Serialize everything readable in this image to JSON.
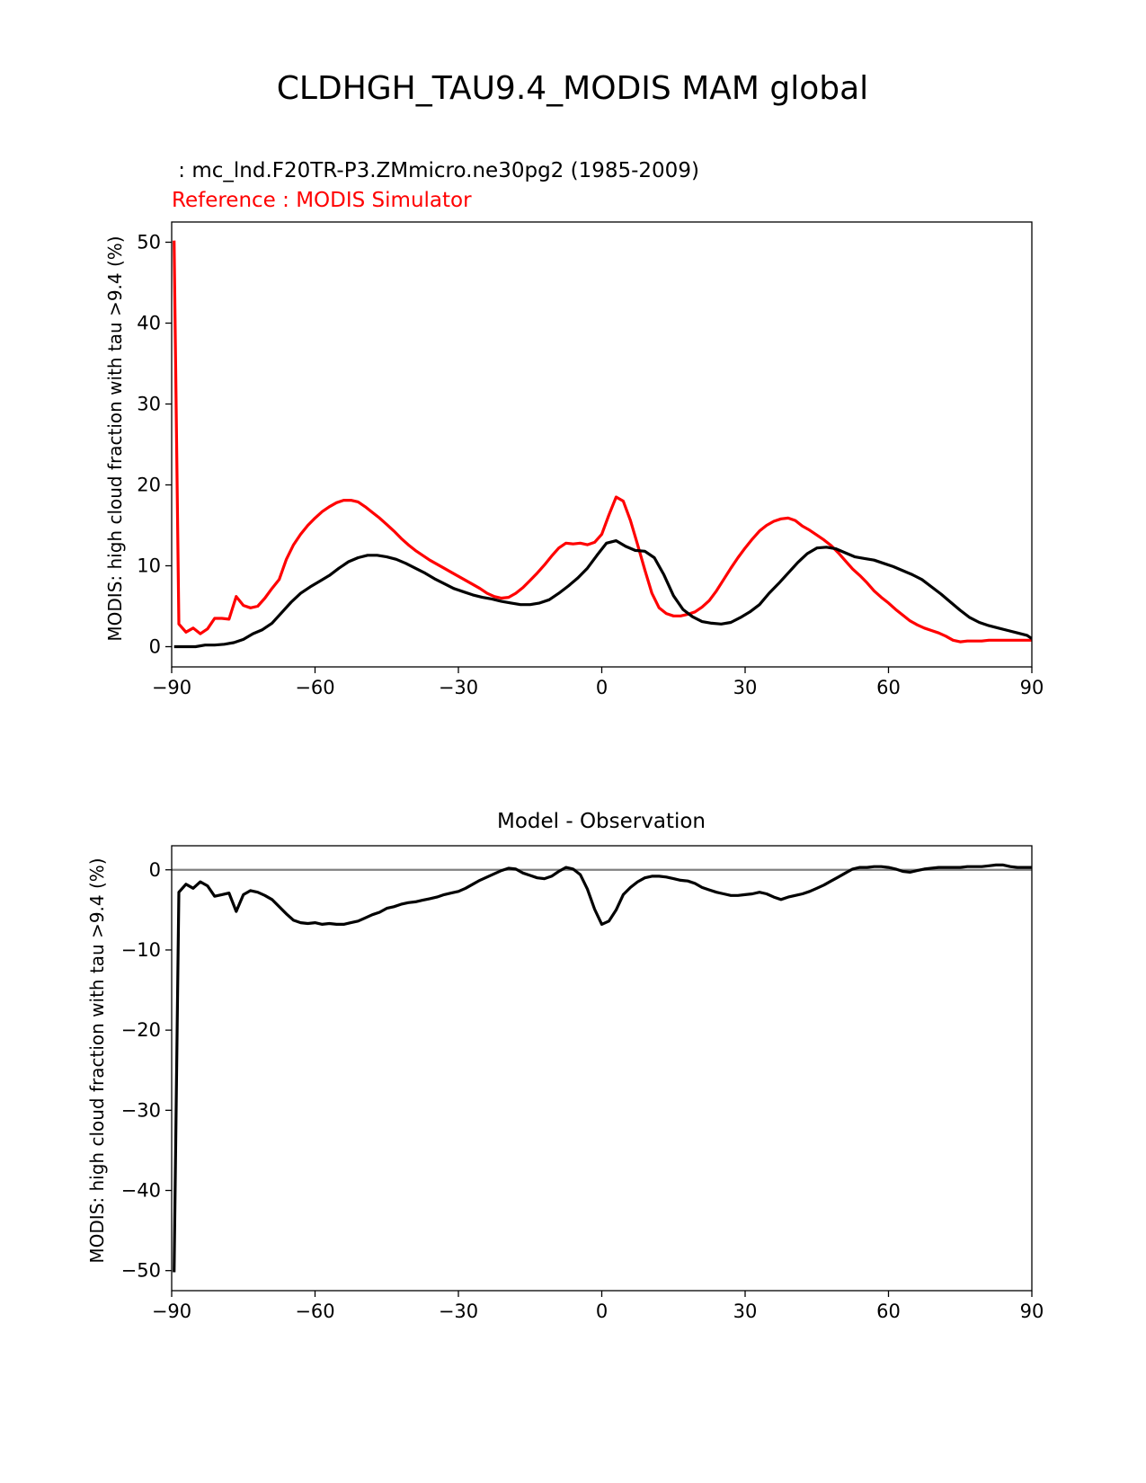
{
  "figure_title": "CLDHGH_TAU9.4_MODIS MAM global",
  "colors": {
    "test": "#000000",
    "reference": "#ff0000",
    "zero_line": "#808080",
    "axes": "#000000"
  },
  "chart_data": [
    {
      "type": "line",
      "panel": "top",
      "title": "",
      "test_label": " : mc_lnd.F20TR-P3.ZMmicro.ne30pg2 (1985-2009)",
      "ref_label": "Reference : MODIS Simulator",
      "xlabel": "",
      "ylabel": "MODIS: high cloud fraction with tau >9.4 (%)",
      "xlim": [
        -90,
        90
      ],
      "ylim": [
        -2.5,
        52.5
      ],
      "xticks": [
        -90,
        -60,
        -30,
        0,
        30,
        60,
        90
      ],
      "xtick_labels": [
        "−90",
        "−60",
        "−30",
        "0",
        "30",
        "60",
        "90"
      ],
      "yticks": [
        0,
        10,
        20,
        30,
        40,
        50
      ],
      "ytick_labels": [
        "0",
        "10",
        "20",
        "30",
        "40",
        "50"
      ],
      "series": [
        {
          "name": "test",
          "color": "#000000",
          "x": [
            -89.5,
            -87,
            -85,
            -83,
            -81,
            -79,
            -77,
            -75,
            -73,
            -71,
            -69,
            -67,
            -65,
            -63,
            -61,
            -59,
            -57,
            -55,
            -53,
            -51,
            -49,
            -47,
            -45,
            -43,
            -41,
            -39,
            -37,
            -35,
            -33,
            -31,
            -29,
            -27,
            -25,
            -23,
            -21,
            -19,
            -17,
            -15,
            -13,
            -11,
            -9,
            -7,
            -5,
            -3,
            -1,
            1,
            3,
            5,
            7,
            9,
            11,
            13,
            15,
            17,
            19,
            21,
            23,
            25,
            27,
            29,
            31,
            33,
            35,
            37,
            39,
            41,
            43,
            45,
            47,
            49,
            51,
            53,
            55,
            57,
            59,
            61,
            63,
            65,
            67,
            69,
            71,
            73,
            75,
            77,
            79,
            81,
            83,
            85,
            87,
            89
          ],
          "values": [
            0,
            0,
            0,
            0.2,
            0.2,
            0.3,
            0.5,
            0.9,
            1.6,
            2.1,
            2.9,
            4.2,
            5.5,
            6.6,
            7.4,
            8.1,
            8.8,
            9.7,
            10.5,
            11.0,
            11.3,
            11.3,
            11.1,
            10.8,
            10.3,
            9.7,
            9.1,
            8.4,
            7.8,
            7.2,
            6.8,
            6.4,
            6.1,
            5.9,
            5.6,
            5.4,
            5.2,
            5.2,
            5.4,
            5.8,
            6.6,
            7.5,
            8.5,
            9.7,
            11.3,
            12.8,
            13.1,
            12.4,
            11.9,
            11.8,
            11.0,
            8.9,
            6.3,
            4.6,
            3.7,
            3.1,
            2.9,
            2.8,
            3.0,
            3.6,
            4.3,
            5.2,
            6.6,
            7.8,
            9.1,
            10.4,
            11.5,
            12.2,
            12.3,
            12.1,
            11.6,
            11.1,
            10.9,
            10.7,
            10.3,
            9.9,
            9.4,
            8.9,
            8.3,
            7.4,
            6.5,
            5.5,
            4.5,
            3.6,
            3.0,
            2.6,
            2.3,
            2.0,
            1.7,
            1.4
          ],
          "values_tail_note": "continues to 90 at ~1.0"
        },
        {
          "name": "reference",
          "color": "#ff0000",
          "x": [
            -89.5,
            -88.5,
            -87,
            -85.5,
            -84,
            -82.5,
            -81,
            -79.5,
            -78,
            -76.5,
            -75,
            -73.5,
            -72,
            -70.5,
            -69,
            -67.5,
            -66,
            -64.5,
            -63,
            -61.5,
            -60,
            -58.5,
            -57,
            -55.5,
            -54,
            -52.5,
            -51,
            -49.5,
            -48,
            -46.5,
            -45,
            -43.5,
            -42,
            -40.5,
            -39,
            -37.5,
            -36,
            -34.5,
            -33,
            -31.5,
            -30,
            -28.5,
            -27,
            -25.5,
            -24,
            -22.5,
            -21,
            -19.5,
            -18,
            -16.5,
            -15,
            -13.5,
            -12,
            -10.5,
            -9,
            -7.5,
            -6,
            -4.5,
            -3,
            -1.5,
            0,
            1.5,
            3,
            4.5,
            6,
            7.5,
            9,
            10.5,
            12,
            13.5,
            15,
            16.5,
            18,
            19.5,
            21,
            22.5,
            24,
            25.5,
            27,
            28.5,
            30,
            31.5,
            33,
            34.5,
            36,
            37.5,
            39,
            40.5,
            42,
            43.5,
            45,
            46.5,
            48,
            49.5,
            51,
            52.5,
            54,
            55.5,
            57,
            58.5,
            60,
            61.5,
            63,
            64.5,
            66,
            67.5,
            69,
            70.5,
            72,
            73.5,
            75,
            76.5,
            78,
            79.5,
            81,
            82.5,
            84,
            85.5,
            87,
            88.5,
            90
          ],
          "values": [
            50.2,
            2.8,
            1.8,
            2.3,
            1.6,
            2.2,
            3.5,
            3.5,
            3.4,
            6.2,
            5.1,
            4.8,
            5.0,
            6.0,
            7.2,
            8.3,
            10.8,
            12.6,
            13.9,
            15.0,
            15.9,
            16.7,
            17.3,
            17.8,
            18.1,
            18.1,
            17.9,
            17.3,
            16.6,
            15.9,
            15.1,
            14.3,
            13.4,
            12.6,
            11.9,
            11.3,
            10.7,
            10.2,
            9.7,
            9.2,
            8.7,
            8.2,
            7.7,
            7.2,
            6.6,
            6.2,
            6.0,
            6.1,
            6.6,
            7.3,
            8.2,
            9.1,
            10.1,
            11.2,
            12.2,
            12.8,
            12.7,
            12.8,
            12.6,
            12.9,
            13.9,
            16.3,
            18.5,
            18.0,
            15.6,
            12.6,
            9.5,
            6.6,
            4.8,
            4.1,
            3.8,
            3.8,
            4.0,
            4.3,
            4.9,
            5.7,
            6.9,
            8.3,
            9.7,
            11.0,
            12.2,
            13.3,
            14.3,
            15.0,
            15.5,
            15.8,
            15.9,
            15.6,
            14.9,
            14.4,
            13.8,
            13.2,
            12.5,
            11.6,
            10.6,
            9.6,
            8.8,
            7.9,
            6.9,
            6.1,
            5.4,
            4.6,
            3.9,
            3.2,
            2.7,
            2.3,
            2.0,
            1.7,
            1.3,
            0.8,
            0.6,
            0.7,
            0.7,
            0.7,
            0.8,
            0.8,
            0.8,
            0.8,
            0.8,
            0.8,
            0.8
          ]
        }
      ]
    },
    {
      "type": "line",
      "panel": "bottom",
      "title": "Model - Observation",
      "xlabel": "",
      "ylabel": "MODIS: high cloud fraction with tau >9.4 (%)",
      "xlim": [
        -90,
        90
      ],
      "ylim": [
        -52.5,
        3
      ],
      "xticks": [
        -90,
        -60,
        -30,
        0,
        30,
        60,
        90
      ],
      "xtick_labels": [
        "−90",
        "−60",
        "−30",
        "0",
        "30",
        "60",
        "90"
      ],
      "yticks": [
        0,
        -10,
        -20,
        -30,
        -40,
        -50
      ],
      "ytick_labels": [
        "0",
        "−10",
        "−20",
        "−30",
        "−40",
        "−50"
      ],
      "zero_line": 0,
      "series": [
        {
          "name": "difference",
          "color": "#000000",
          "x": [
            -89.5,
            -88.5,
            -87,
            -85.5,
            -84,
            -82.5,
            -81,
            -79.5,
            -78,
            -76.5,
            -75,
            -73.5,
            -72,
            -70.5,
            -69,
            -67.5,
            -66,
            -64.5,
            -63,
            -61.5,
            -60,
            -58.5,
            -57,
            -55.5,
            -54,
            -52.5,
            -51,
            -49.5,
            -48,
            -46.5,
            -45,
            -43.5,
            -42,
            -40.5,
            -39,
            -37.5,
            -36,
            -34.5,
            -33,
            -31.5,
            -30,
            -28.5,
            -27,
            -25.5,
            -24,
            -22.5,
            -21,
            -19.5,
            -18,
            -16.5,
            -15,
            -13.5,
            -12,
            -10.5,
            -9,
            -7.5,
            -6,
            -4.5,
            -3,
            -1.5,
            0,
            1.5,
            3,
            4.5,
            6,
            7.5,
            9,
            10.5,
            12,
            13.5,
            15,
            16.5,
            18,
            19.5,
            21,
            22.5,
            24,
            25.5,
            27,
            28.5,
            30,
            31.5,
            33,
            34.5,
            36,
            37.5,
            39,
            40.5,
            42,
            43.5,
            45,
            46.5,
            48,
            49.5,
            51,
            52.5,
            54,
            55.5,
            57,
            58.5,
            60,
            61.5,
            63,
            64.5,
            66,
            67.5,
            69,
            70.5,
            72,
            73.5,
            75,
            76.5,
            78,
            79.5,
            81,
            82.5,
            84,
            85.5,
            87,
            88.5,
            90
          ],
          "values": [
            -50.2,
            -2.8,
            -1.8,
            -2.3,
            -1.5,
            -2.0,
            -3.3,
            -3.1,
            -2.9,
            -5.2,
            -3.1,
            -2.6,
            -2.8,
            -3.2,
            -3.7,
            -4.6,
            -5.5,
            -6.3,
            -6.6,
            -6.7,
            -6.6,
            -6.8,
            -6.7,
            -6.8,
            -6.8,
            -6.6,
            -6.4,
            -6.0,
            -5.6,
            -5.3,
            -4.8,
            -4.6,
            -4.3,
            -4.1,
            -4.0,
            -3.8,
            -3.6,
            -3.4,
            -3.1,
            -2.9,
            -2.7,
            -2.3,
            -1.8,
            -1.3,
            -0.9,
            -0.5,
            -0.1,
            0.2,
            0.1,
            -0.4,
            -0.7,
            -1.0,
            -1.1,
            -0.8,
            -0.2,
            0.3,
            0.1,
            -0.6,
            -2.4,
            -4.9,
            -6.8,
            -6.4,
            -5.0,
            -3.1,
            -2.2,
            -1.5,
            -1.0,
            -0.8,
            -0.8,
            -0.9,
            -1.1,
            -1.3,
            -1.4,
            -1.7,
            -2.2,
            -2.5,
            -2.8,
            -3.0,
            -3.2,
            -3.2,
            -3.1,
            -3.0,
            -2.8,
            -3.0,
            -3.4,
            -3.7,
            -3.4,
            -3.2,
            -3.0,
            -2.7,
            -2.3,
            -1.9,
            -1.4,
            -0.9,
            -0.4,
            0.1,
            0.3,
            0.3,
            0.4,
            0.4,
            0.3,
            0.1,
            -0.2,
            -0.3,
            -0.1,
            0.1,
            0.2,
            0.3,
            0.3,
            0.3,
            0.3,
            0.4,
            0.4,
            0.4,
            0.5,
            0.6,
            0.6,
            0.4,
            0.3,
            0.3,
            0.3
          ]
        }
      ]
    }
  ]
}
